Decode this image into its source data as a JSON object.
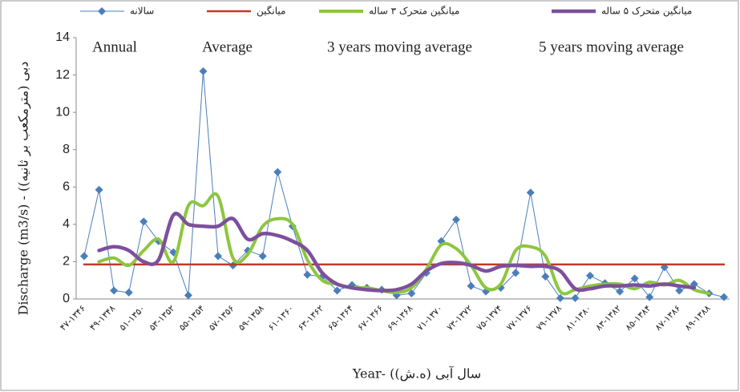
{
  "chart_data": {
    "type": "line",
    "y_label": "Discharge (m3/s) - (دبی (مترمکعب بر ثانیه)",
    "x_label": "Year- (سال آبی (ه.ش)",
    "annotations": [
      "Annual",
      "Average",
      "3 years moving average",
      "5 years moving average"
    ],
    "categories": [
      "۴۷-۱۳۴۶",
      null,
      "۴۹-۱۳۴۸",
      null,
      "۵۱-۱۳۵۰",
      null,
      "۵۳-۱۳۵۲",
      null,
      "۵۵-۱۳۵۴",
      null,
      "۵۷-۱۳۵۶",
      null,
      "۵۹-۱۳۵۸",
      null,
      "۶۱-۱۳۶۰",
      null,
      "۶۳-۱۳۶۲",
      null,
      "۶۵-۱۳۶۴",
      null,
      "۶۷-۱۳۶۶",
      null,
      "۶۹-۱۳۶۸",
      null,
      "۷۱-۱۳۷۰",
      null,
      "۷۳-۱۳۷۲",
      null,
      "۷۵-۱۳۷۴",
      null,
      "۷۷-۱۳۷۶",
      null,
      "۷۹-۱۳۷۸",
      null,
      "۸۱-۱۳۸۰",
      null,
      "۸۳-۱۳۸۲",
      null,
      "۸۵-۱۳۸۴",
      null,
      "۸۷-۱۳۸۶",
      null,
      "۸۹-۱۳۸۸",
      null
    ],
    "series": [
      {
        "name": "سالانه",
        "color": "#4a7ebb",
        "marker": "diamond",
        "smooth": false,
        "values": [
          2.3,
          5.85,
          0.45,
          0.35,
          4.15,
          3.1,
          2.5,
          0.2,
          12.2,
          2.3,
          1.8,
          2.6,
          2.3,
          6.8,
          3.9,
          1.3,
          1.2,
          0.45,
          0.75,
          0.6,
          0.5,
          0.2,
          0.3,
          1.4,
          3.1,
          4.25,
          0.7,
          0.4,
          0.6,
          1.4,
          5.7,
          1.2,
          0.05,
          0.05,
          1.25,
          0.85,
          0.4,
          1.1,
          0.1,
          1.7,
          0.45,
          0.8,
          0.3,
          0.1
        ]
      },
      {
        "name": "میانگین",
        "color": "#c0392b",
        "marker": "none",
        "smooth": false,
        "values": [
          1.85,
          1.85,
          1.85,
          1.85,
          1.85,
          1.85,
          1.85,
          1.85,
          1.85,
          1.85,
          1.85,
          1.85,
          1.85,
          1.85,
          1.85,
          1.85,
          1.85,
          1.85,
          1.85,
          1.85,
          1.85,
          1.85,
          1.85,
          1.85,
          1.85,
          1.85,
          1.85,
          1.85,
          1.85,
          1.85,
          1.85,
          1.85,
          1.85,
          1.85,
          1.85,
          1.85,
          1.85,
          1.85,
          1.85,
          1.85,
          1.85,
          1.85,
          1.85,
          1.85
        ]
      },
      {
        "name": "میانگین متحرک ۳ ساله",
        "color": "#8dc63f",
        "marker": "none",
        "smooth": true,
        "values": [
          null,
          2.0,
          2.2,
          1.8,
          2.6,
          3.2,
          2.0,
          5.0,
          5.0,
          5.5,
          2.2,
          2.4,
          3.9,
          4.3,
          4.0,
          2.1,
          1.0,
          0.8,
          0.6,
          0.6,
          0.45,
          0.35,
          0.6,
          1.6,
          2.9,
          2.7,
          1.8,
          0.6,
          0.8,
          2.6,
          2.8,
          2.3,
          0.4,
          0.5,
          0.7,
          0.8,
          0.8,
          0.55,
          0.9,
          0.75,
          1.0,
          0.5,
          0.3,
          null
        ]
      },
      {
        "name": "میانگین متحرک ۵ ساله",
        "color": "#7d4f9e",
        "marker": "none",
        "smooth": true,
        "values": [
          null,
          2.6,
          2.8,
          2.6,
          2.0,
          2.1,
          4.5,
          4.0,
          3.9,
          3.9,
          4.3,
          3.2,
          3.5,
          3.4,
          3.1,
          2.6,
          1.4,
          0.8,
          0.6,
          0.5,
          0.45,
          0.5,
          0.8,
          1.5,
          1.9,
          1.95,
          1.8,
          1.5,
          1.75,
          1.8,
          1.75,
          1.75,
          1.5,
          0.55,
          0.55,
          0.7,
          0.7,
          0.75,
          0.7,
          0.8,
          0.7,
          0.6,
          null,
          null
        ]
      }
    ],
    "ylim": [
      0,
      14
    ],
    "yticks": [
      0,
      2,
      4,
      6,
      8,
      10,
      12,
      14
    ],
    "grid": false
  }
}
